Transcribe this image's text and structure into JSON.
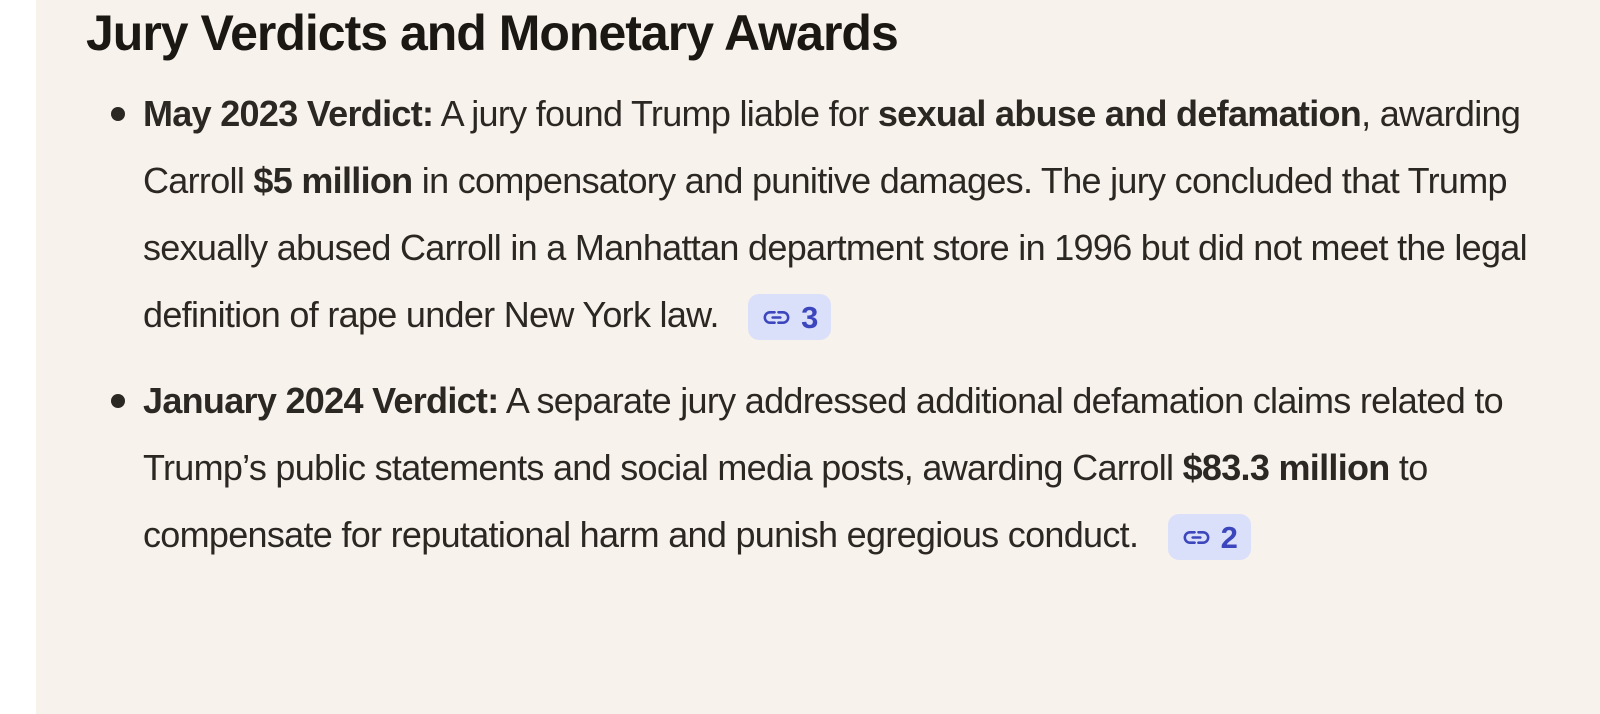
{
  "heading": "Jury Verdicts and Monetary Awards",
  "bullets": [
    {
      "runs": [
        {
          "text": "May 2023 Verdict:",
          "bold": true
        },
        {
          "text": " A jury found Trump liable for ",
          "bold": false
        },
        {
          "text": "sexual abuse and defamation",
          "bold": true
        },
        {
          "text": ", awarding Carroll ",
          "bold": false
        },
        {
          "text": "$5 million",
          "bold": true
        },
        {
          "text": " in compensatory and punitive damages. The jury concluded that Trump sexually abused Carroll in a Manhattan department store in 1996 but did not meet the legal definition of rape under New York law.",
          "bold": false
        }
      ],
      "citation": "3"
    },
    {
      "runs": [
        {
          "text": "January 2024 Verdict:",
          "bold": true
        },
        {
          "text": " A separate jury addressed additional defamation claims related to Trump’s public statements and social media posts, awarding Carroll ",
          "bold": false
        },
        {
          "text": "$83.3 million",
          "bold": true
        },
        {
          "text": " to compensate for reputational harm and punish egregious conduct.",
          "bold": false
        }
      ],
      "citation": "2"
    }
  ],
  "icons": {
    "citation_icon": "link-icon"
  },
  "colors": {
    "page_background": "#f7f2ec",
    "left_gutter": "#ffffff",
    "heading_text": "#1b1814",
    "body_text": "#2b2722",
    "citation_badge_background": "#dbe0fa",
    "citation_badge_foreground": "#3c47bd"
  }
}
